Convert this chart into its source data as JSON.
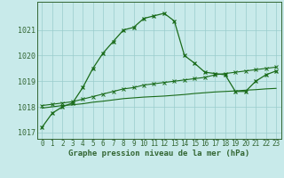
{
  "title": "Graphe pression niveau de la mer (hPa)",
  "hours": [
    0,
    1,
    2,
    3,
    4,
    5,
    6,
    7,
    8,
    9,
    10,
    11,
    12,
    13,
    14,
    15,
    16,
    17,
    18,
    19,
    20,
    21,
    22,
    23
  ],
  "line_main": [
    1017.2,
    1017.75,
    1018.0,
    1018.15,
    1018.75,
    1019.5,
    1020.1,
    1020.55,
    1021.0,
    1021.1,
    1021.45,
    1021.55,
    1021.65,
    1021.35,
    1020.0,
    1019.7,
    1019.35,
    1019.3,
    1019.25,
    1018.6,
    1018.6,
    1019.0,
    1019.25,
    1019.4
  ],
  "line_upper": [
    1018.05,
    1018.1,
    1018.15,
    1018.2,
    1018.3,
    1018.4,
    1018.5,
    1018.6,
    1018.7,
    1018.75,
    1018.85,
    1018.9,
    1018.95,
    1019.0,
    1019.05,
    1019.1,
    1019.15,
    1019.25,
    1019.3,
    1019.35,
    1019.4,
    1019.45,
    1019.5,
    1019.55
  ],
  "line_lower": [
    1017.95,
    1018.0,
    1018.05,
    1018.08,
    1018.12,
    1018.18,
    1018.22,
    1018.27,
    1018.32,
    1018.35,
    1018.38,
    1018.4,
    1018.42,
    1018.45,
    1018.48,
    1018.52,
    1018.55,
    1018.58,
    1018.6,
    1018.62,
    1018.65,
    1018.67,
    1018.7,
    1018.72
  ],
  "ylim": [
    1016.75,
    1022.1
  ],
  "yticks": [
    1017,
    1018,
    1019,
    1020,
    1021
  ],
  "line_color": "#1a6b1a",
  "bg_color": "#c8eaea",
  "grid_color": "#99cccc",
  "axis_color": "#336633",
  "label_fontsize": 5.5,
  "title_fontsize": 6.5
}
